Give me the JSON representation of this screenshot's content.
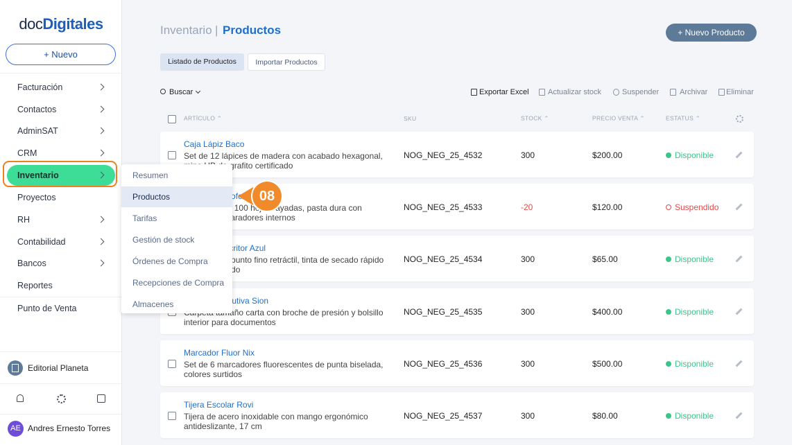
{
  "sidebar": {
    "logo": {
      "prefix": "doc",
      "main": "Digitales"
    },
    "new_button": "+ Nuevo",
    "menu": [
      {
        "label": "Facturación",
        "arrow": true
      },
      {
        "label": "Contactos",
        "arrow": true
      },
      {
        "label": "AdminSAT",
        "arrow": true
      },
      {
        "label": "CRM",
        "arrow": true
      },
      {
        "label": "Inventario",
        "arrow": true,
        "selected": true
      },
      {
        "label": "Proyectos",
        "arrow": false
      },
      {
        "label": "RH",
        "arrow": true
      },
      {
        "label": "Contabilidad",
        "arrow": true
      },
      {
        "label": "Bancos",
        "arrow": true
      },
      {
        "label": "Reportes",
        "arrow": false
      },
      {
        "label": "Punto de Venta",
        "arrow": false
      }
    ],
    "company": "Editorial Planeta",
    "user": {
      "initials": "AE",
      "name": "Andres Ernesto Torres"
    }
  },
  "submenu": {
    "items": [
      {
        "label": "Resumen"
      },
      {
        "label": "Productos",
        "selected": true
      },
      {
        "label": "Tarifas"
      },
      {
        "label": "Gestión de stock"
      },
      {
        "label": "Órdenes de Compra"
      },
      {
        "label": "Recepciones de Compra"
      },
      {
        "label": "Almacenes"
      }
    ]
  },
  "callout": "08",
  "header": {
    "section": "Inventario",
    "separator": "|",
    "page": "Productos",
    "new_button": "+ Nuevo Producto"
  },
  "tabs": [
    {
      "label": "Listado de Productos",
      "selected": true
    },
    {
      "label": "Importar Productos"
    }
  ],
  "toolbar": {
    "search": "Buscar",
    "actions": [
      {
        "label": "Exportar Excel",
        "primary": true
      },
      {
        "label": "Actualizar stock"
      },
      {
        "label": "Suspender"
      },
      {
        "label": "Archivar"
      },
      {
        "label": "Eliminar"
      }
    ]
  },
  "table": {
    "headers": [
      "ARTÍCULO ⌃",
      "SKU",
      "STOCK ⌃",
      "PRECIO VENTA ⌃",
      "ESTATUS ⌃"
    ],
    "rows": [
      {
        "name": "Caja Lápiz Baco",
        "description": "Set de 12 lápices de madera con acabado hexagonal, mina HB de grafito certificado",
        "sku": "NOG_NEG_25_4532",
        "stock": "300",
        "price": "$200.00",
        "status": "Disponible",
        "status_color": "#3cc48a",
        "status_filled": true
      },
      {
        "name": "Cuaderno Profesional",
        "description": "Cuaderno de 100 hojas rayadas, pasta dura con espiral y separadores internos",
        "sku": "NOG_NEG_25_4533",
        "stock": "-20",
        "price": "$120.00",
        "status": "Suspendido",
        "status_color": "#e54848",
        "status_filled": false
      },
      {
        "name": "Bolígrafo Escritor Azul",
        "description": "Bolígrafo de punto fino retráctil, tinta de secado rápido y clip reforzado",
        "sku": "NOG_NEG_25_4534",
        "stock": "300",
        "price": "$65.00",
        "status": "Disponible",
        "status_color": "#3cc48a",
        "status_filled": true
      },
      {
        "name": "Carpeta Ejecutiva Sion",
        "description": "Carpeta tamaño carta con broche de presión y bolsillo interior para documentos",
        "sku": "NOG_NEG_25_4535",
        "stock": "300",
        "price": "$400.00",
        "status": "Disponible",
        "status_color": "#3cc48a",
        "status_filled": true
      },
      {
        "name": "Marcador Fluor Nix",
        "description": "Set de 6 marcadores fluorescentes de punta biselada, colores surtidos",
        "sku": "NOG_NEG_25_4536",
        "stock": "300",
        "price": "$500.00",
        "status": "Disponible",
        "status_color": "#3cc48a",
        "status_filled": true
      },
      {
        "name": "Tijera Escolar Rovi",
        "description": "Tijera de acero inoxidable con mango ergonómico antideslizante, 17 cm",
        "sku": "NOG_NEG_25_4537",
        "stock": "300",
        "price": "$80.00",
        "status": "Disponible",
        "status_color": "#3cc48a",
        "status_filled": true
      }
    ]
  }
}
